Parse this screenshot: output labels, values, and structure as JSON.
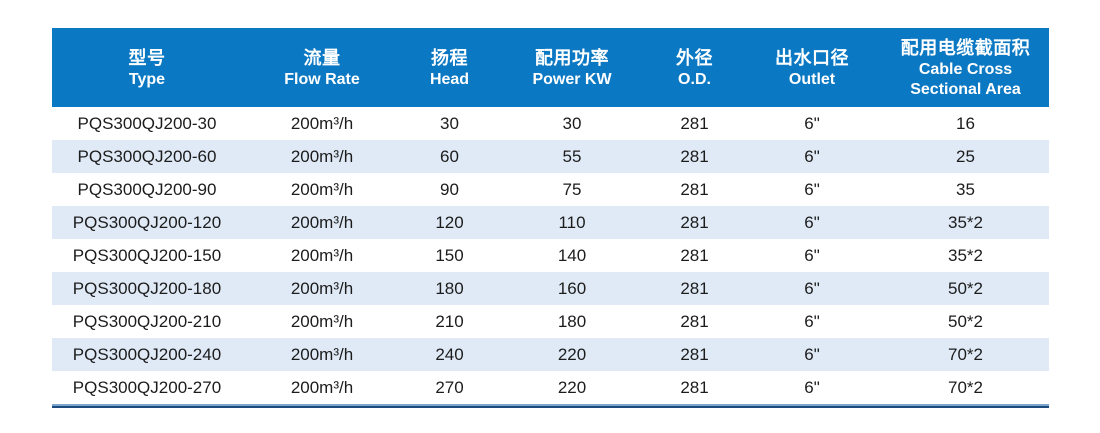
{
  "colors": {
    "header_bg": "#0b78c3",
    "header_text": "#ffffff",
    "row_stripe_bg": "#dfeaf6",
    "row_plain_bg": "#ffffff",
    "body_text": "#1c1c1c",
    "bottom_bar": "#1b4b7e"
  },
  "table": {
    "columns": [
      {
        "key": "type",
        "zh": "型号",
        "en": "Type"
      },
      {
        "key": "flow",
        "zh": "流量",
        "en": "Flow Rate"
      },
      {
        "key": "head",
        "zh": "扬程",
        "en": "Head"
      },
      {
        "key": "power",
        "zh": "配用功率",
        "en": "Power KW"
      },
      {
        "key": "od",
        "zh": "外径",
        "en": "O.D."
      },
      {
        "key": "outlet",
        "zh": "出水口径",
        "en": "Outlet"
      },
      {
        "key": "cable",
        "zh": "配用电缆截面积",
        "en": "Cable Cross Sectional Area"
      }
    ],
    "rows": [
      [
        "PQS300QJ200-30",
        "200m³/h",
        "30",
        "30",
        "281",
        "6\"",
        "16"
      ],
      [
        "PQS300QJ200-60",
        "200m³/h",
        "60",
        "55",
        "281",
        "6\"",
        "25"
      ],
      [
        "PQS300QJ200-90",
        "200m³/h",
        "90",
        "75",
        "281",
        "6\"",
        "35"
      ],
      [
        "PQS300QJ200-120",
        "200m³/h",
        "120",
        "110",
        "281",
        "6\"",
        "35*2"
      ],
      [
        "PQS300QJ200-150",
        "200m³/h",
        "150",
        "140",
        "281",
        "6\"",
        "35*2"
      ],
      [
        "PQS300QJ200-180",
        "200m³/h",
        "180",
        "160",
        "281",
        "6\"",
        "50*2"
      ],
      [
        "PQS300QJ200-210",
        "200m³/h",
        "210",
        "180",
        "281",
        "6\"",
        "50*2"
      ],
      [
        "PQS300QJ200-240",
        "200m³/h",
        "240",
        "220",
        "281",
        "6\"",
        "70*2"
      ],
      [
        "PQS300QJ200-270",
        "200m³/h",
        "270",
        "220",
        "281",
        "6\"",
        "70*2"
      ]
    ]
  }
}
